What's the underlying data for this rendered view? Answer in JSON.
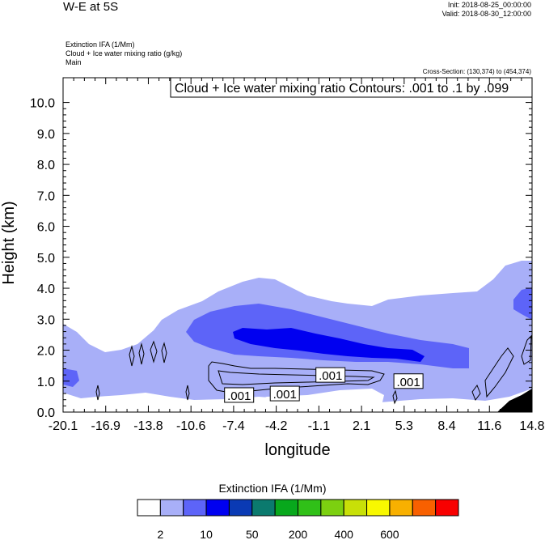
{
  "header": {
    "title": "W-E at 5S",
    "init": "Init: 2018-08-25_00:00:00",
    "valid": "Valid: 2018-08-30_12:00:00",
    "field1": "Extinction IFA   (1/Mm)",
    "field2": "Cloud + Ice water mixing ratio   (g/kg)",
    "field3": "Main",
    "cross_section": "Cross-Section: (130,374) to (454,374)"
  },
  "chart_data": {
    "type": "heatmap",
    "title": "",
    "xlabel": "longitude",
    "ylabel": "Height (km)",
    "x_ticks": [
      "-20.1",
      "-16.9",
      "-13.8",
      "-10.6",
      "-7.4",
      "-4.2",
      "-1.1",
      "2.1",
      "5.3",
      "8.4",
      "11.6",
      "14.8"
    ],
    "xlim": [
      -20.1,
      14.8
    ],
    "y_ticks": [
      "0.0",
      "1.0",
      "2.0",
      "3.0",
      "4.0",
      "5.0",
      "6.0",
      "7.0",
      "8.0",
      "9.0",
      "10.0"
    ],
    "ylim": [
      0,
      10.8
    ],
    "contour_info": "Cloud + Ice water mixing ratio Contours: .001 to .1 by .099",
    "contour_labels": [
      {
        "text": ".001",
        "lon": -7.0,
        "h": 0.55
      },
      {
        "text": ".001",
        "lon": -3.6,
        "h": 0.6
      },
      {
        "text": ".001",
        "lon": -0.2,
        "h": 1.2
      },
      {
        "text": ".001",
        "lon": 5.6,
        "h": 1.0
      }
    ],
    "colorbar": {
      "title": "Extinction IFA  (1/Mm)",
      "colors": [
        "#ffffff",
        "#a8aff8",
        "#5d64f8",
        "#0000f0",
        "#0a3ab4",
        "#0b7a6e",
        "#08a81c",
        "#30c018",
        "#7cd010",
        "#c8e008",
        "#f8f800",
        "#f8b000",
        "#f86000",
        "#f80000"
      ],
      "labels": [
        "2",
        "10",
        "50",
        "200",
        "400",
        "600"
      ]
    }
  }
}
